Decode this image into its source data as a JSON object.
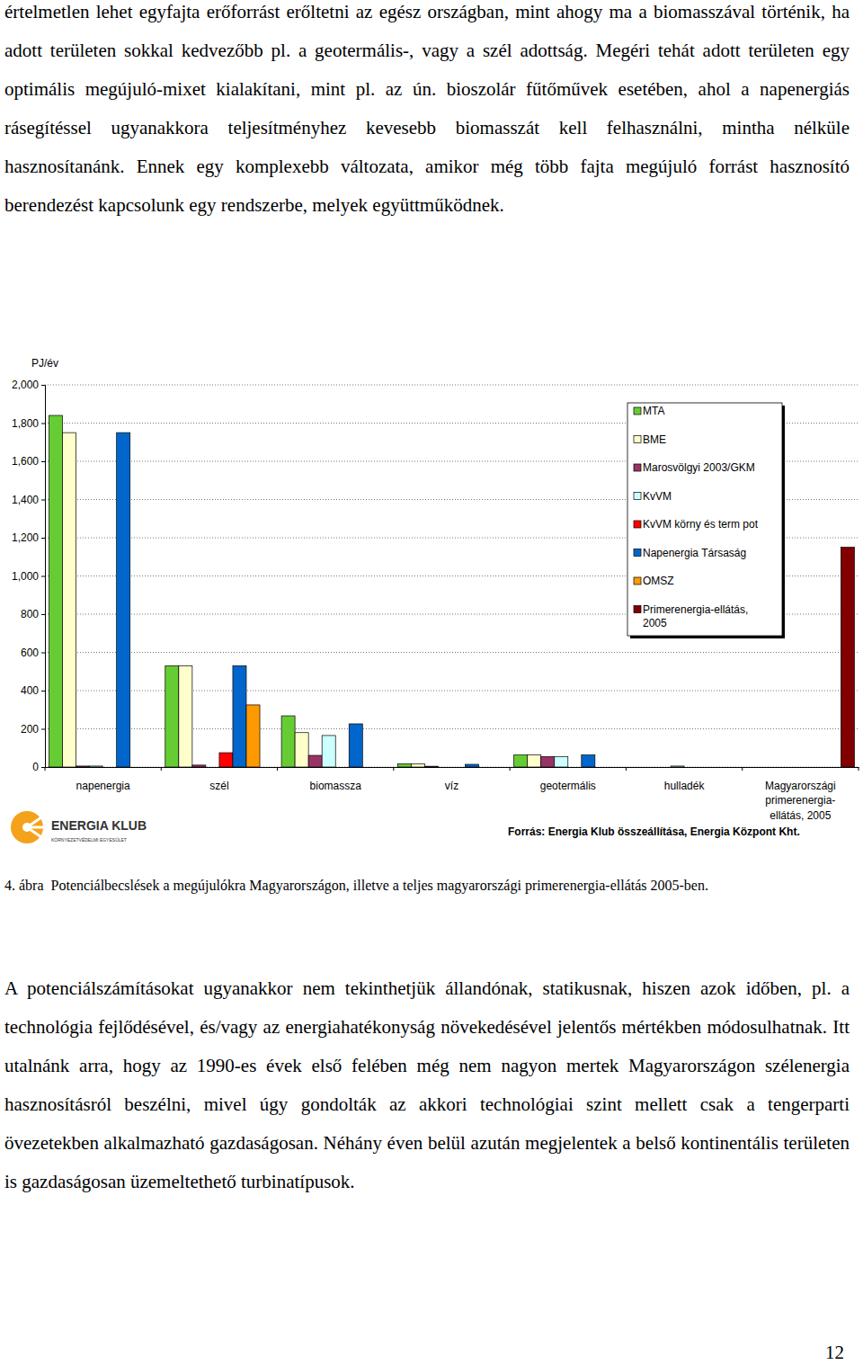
{
  "document": {
    "paragraphs": [
      "értelmetlen lehet egyfajta erőforrást erőltetni az egész országban, mint ahogy ma a biomasszával történik, ha adott területen sokkal kedvezőbb pl. a geotermális-, vagy a szél adottság. Megéri tehát adott területen egy optimális megújuló-mixet kialakítani, mint pl. az ún. bioszolár fűtőművek esetében, ahol a napenergiás rásegítéssel ugyanakkora teljesítményhez kevesebb biomasszát kell felhasználni, mintha nélküle hasznosítanánk. Ennek egy komplexebb változata, amikor még több fajta megújuló forrást hasznosító berendezést kapcsolunk egy rendszerbe, melyek együttműködnek.",
      "A potenciálszámításokat ugyanakkor nem tekinthetjük állandónak, statikusnak, hiszen azok időben, pl. a technológia fejlődésével, és/vagy az energiahatékonyság növekedésével jelentős mértékben módosulhatnak. Itt utalnánk arra, hogy az 1990-es évek első felében még nem nagyon mertek Magyarországon szélenergia hasznosításról beszélni, mivel úgy gondolták az akkori technológiai szint mellett csak a tengerparti övezetekben alkalmazható gazdaságosan. Néhány éven belül azután megjelentek a belső kontinentális területen is gazdaságosan üzemeltethető turbinatípusok."
    ],
    "caption": "4. ábra  Potenciálbecslések a megújulókra Magyarországon, illetve a teljes magyarországi primerenergia-ellátás 2005-ben.",
    "page_number": "12",
    "logo": {
      "name": "ENERGIA KLUB",
      "subtitle": "KÖRNYEZETVÉDELMI EGYESÜLET"
    }
  },
  "chart_data": {
    "type": "bar",
    "ylabel": "PJ/év",
    "source": "Forrás: Energia Klub összeállítása, Energia Központ Kht.",
    "categories": [
      "napenergia",
      "szél",
      "biomassza",
      "víz",
      "geotermális",
      "hulladék",
      "Magyarországi primerenergia-ellátás, 2005"
    ],
    "series": [
      {
        "name": "MTA",
        "color": "#66cc33",
        "values": [
          1840,
          530,
          268,
          17,
          63,
          null,
          null
        ]
      },
      {
        "name": "BME",
        "color": "#ffffcc",
        "values": [
          1750,
          530,
          180,
          17,
          63,
          null,
          null
        ]
      },
      {
        "name": "Marosvölgyi 2003/GKM",
        "color": "#993366",
        "values": [
          5,
          10,
          61,
          4,
          55,
          null,
          null
        ]
      },
      {
        "name": "KvVM",
        "color": "#ccffff",
        "values": [
          5,
          null,
          165,
          null,
          55,
          5,
          null
        ]
      },
      {
        "name": "KvVM körny és term pot",
        "color": "#ff0000",
        "values": [
          null,
          75,
          null,
          null,
          null,
          null,
          null
        ]
      },
      {
        "name": "Napenergia Társaság",
        "color": "#0066cc",
        "values": [
          1750,
          530,
          226,
          14,
          63,
          null,
          null
        ]
      },
      {
        "name": "OMSZ",
        "color": "#ff9900",
        "values": [
          null,
          325,
          null,
          null,
          null,
          null,
          null
        ]
      },
      {
        "name": "Primerenergia-ellátás, 2005",
        "color": "#800000",
        "values": [
          null,
          null,
          null,
          null,
          null,
          null,
          1150
        ]
      }
    ],
    "ylim": [
      0,
      2000
    ],
    "yticks": [
      0,
      200,
      400,
      600,
      800,
      {
        "value": 1000,
        "label": "1,000"
      },
      {
        "value": 1200,
        "label": "1,200"
      },
      {
        "value": 1400,
        "label": "1,400"
      },
      {
        "value": 1600,
        "label": "1,600"
      },
      {
        "value": 1800,
        "label": "1,800"
      },
      {
        "value": 2000,
        "label": "2,000"
      }
    ],
    "grid": true,
    "legend": "top-right"
  }
}
